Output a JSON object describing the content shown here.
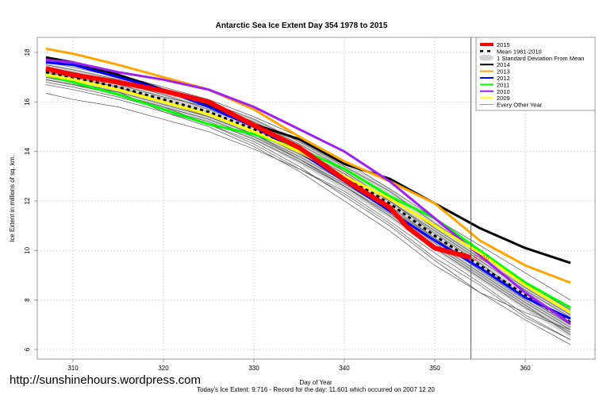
{
  "chart_data": {
    "type": "line",
    "title": "Antarctic Sea Ice Extent Day 354 1978 to 2015",
    "xlabel": "Day of Year",
    "ylabel": "Ice Extent in millions of sq. km.",
    "xlim": [
      306,
      366
    ],
    "ylim": [
      5.5,
      18.6
    ],
    "xticks": [
      310,
      320,
      330,
      340,
      350,
      360
    ],
    "yticks": [
      6,
      8,
      10,
      12,
      14,
      16,
      18
    ],
    "grid": true,
    "legend_position": "top-right",
    "current_day": 354,
    "current_value_label": "9.716",
    "x": [
      307,
      310,
      315,
      320,
      325,
      330,
      335,
      340,
      345,
      350,
      355,
      360,
      365
    ],
    "sd_band": {
      "name": "1 Standard Deviation From Mean",
      "color": "#d3d3d3",
      "upper": [
        17.55,
        17.35,
        16.95,
        16.5,
        16.0,
        15.35,
        14.5,
        13.55,
        12.5,
        11.2,
        10.0,
        8.8,
        7.7
      ],
      "lower": [
        16.85,
        16.65,
        16.25,
        15.7,
        15.2,
        14.45,
        13.5,
        12.45,
        11.3,
        10.0,
        8.8,
        7.6,
        6.5
      ]
    },
    "mean": {
      "name": "Mean 1981-2010",
      "color": "#000000",
      "values": [
        17.2,
        17.0,
        16.6,
        16.1,
        15.6,
        14.9,
        14.0,
        13.0,
        11.9,
        10.6,
        9.4,
        8.2,
        7.1
      ]
    },
    "other_years": {
      "name": "Every Other Year",
      "color": "#555555",
      "series": [
        [
          17.5,
          17.3,
          16.9,
          16.4,
          15.9,
          15.2,
          14.3,
          13.3,
          12.2,
          10.9,
          9.7,
          8.5,
          7.4
        ],
        [
          16.9,
          16.7,
          16.3,
          15.8,
          15.3,
          14.6,
          13.7,
          12.7,
          11.6,
          10.3,
          9.1,
          7.9,
          6.8
        ],
        [
          16.35,
          16.1,
          15.8,
          15.3,
          14.8,
          14.1,
          13.3,
          12.3,
          11.1,
          9.7,
          8.6,
          7.3,
          6.4
        ],
        [
          17.7,
          17.5,
          17.1,
          16.6,
          16.1,
          15.4,
          14.6,
          13.6,
          12.5,
          11.3,
          10.2,
          9.1,
          8.0
        ],
        [
          17.0,
          16.8,
          16.4,
          15.6,
          15.1,
          14.4,
          13.4,
          12.2,
          11.0,
          9.6,
          8.3,
          7.2,
          6.2
        ],
        [
          17.3,
          17.1,
          16.7,
          16.2,
          15.8,
          15.1,
          14.2,
          13.2,
          12.0,
          10.8,
          9.6,
          8.4,
          7.3
        ],
        [
          16.7,
          16.5,
          16.1,
          15.6,
          15.0,
          14.2,
          13.2,
          12.0,
          10.8,
          9.4,
          8.3,
          7.5,
          6.8
        ],
        [
          17.4,
          17.2,
          16.8,
          16.3,
          15.7,
          15.0,
          14.1,
          13.1,
          12.0,
          10.7,
          9.5,
          8.1,
          7.0
        ],
        [
          16.8,
          16.6,
          16.2,
          15.7,
          15.2,
          14.5,
          13.6,
          12.6,
          11.5,
          10.2,
          9.0,
          7.8,
          6.6
        ],
        [
          17.1,
          16.9,
          16.5,
          16.0,
          15.5,
          14.8,
          13.9,
          12.9,
          11.8,
          10.5,
          9.3,
          8.1,
          7.0
        ],
        [
          17.6,
          17.4,
          17.0,
          16.5,
          16.0,
          15.3,
          14.4,
          13.4,
          12.4,
          11.1,
          9.9,
          8.7,
          7.6
        ],
        [
          17.0,
          16.8,
          16.3,
          15.8,
          15.1,
          14.3,
          13.3,
          12.4,
          11.2,
          9.9,
          8.7,
          7.4,
          6.4
        ],
        [
          16.9,
          16.7,
          16.4,
          15.9,
          15.4,
          14.7,
          13.8,
          12.8,
          11.7,
          10.5,
          9.2,
          8.0,
          6.9
        ],
        [
          17.2,
          17.0,
          16.6,
          16.0,
          15.4,
          14.7,
          13.7,
          12.6,
          11.4,
          10.1,
          8.9,
          7.7,
          6.7
        ]
      ]
    },
    "series": [
      {
        "name": "2014",
        "color": "#000000",
        "width": 3,
        "values": [
          17.8,
          17.6,
          17.1,
          16.5,
          15.9,
          15.1,
          14.5,
          13.5,
          12.9,
          11.9,
          10.9,
          10.1,
          9.5
        ]
      },
      {
        "name": "2013",
        "color": "#ffa500",
        "width": 3,
        "values": [
          18.15,
          17.95,
          17.5,
          17.0,
          16.5,
          15.7,
          14.6,
          13.6,
          12.8,
          11.9,
          10.4,
          9.4,
          8.7
        ]
      },
      {
        "name": "2012",
        "color": "#0000ff",
        "width": 3,
        "values": [
          17.6,
          17.5,
          17.0,
          16.5,
          15.8,
          15.0,
          14.0,
          12.8,
          11.6,
          10.4,
          9.3,
          8.1,
          7.25
        ]
      },
      {
        "name": "2011",
        "color": "#00ff00",
        "width": 3,
        "values": [
          17.1,
          16.8,
          16.3,
          15.7,
          15.1,
          14.7,
          14.1,
          13.3,
          12.2,
          11.3,
          10.0,
          8.7,
          7.7
        ]
      },
      {
        "name": "2010",
        "color": "#a020f0",
        "width": 3,
        "values": [
          17.7,
          17.6,
          17.2,
          16.9,
          16.5,
          15.8,
          14.9,
          14.0,
          12.8,
          11.3,
          9.8,
          8.3,
          7.05
        ]
      },
      {
        "name": "2009",
        "color": "#ffff00",
        "width": 3,
        "values": [
          17.1,
          16.9,
          16.5,
          16.0,
          15.5,
          14.8,
          14.0,
          13.0,
          12.1,
          11.0,
          9.9,
          8.6,
          7.5
        ]
      },
      {
        "name": "2015",
        "color": "#ff0000",
        "width": 6,
        "x": [
          307,
          310,
          315,
          320,
          325,
          330,
          335,
          340,
          345,
          347,
          350,
          354
        ],
        "values": [
          17.35,
          17.1,
          16.8,
          16.45,
          16.0,
          15.06,
          14.16,
          12.87,
          11.74,
          10.94,
          10.1,
          9.716
        ]
      }
    ],
    "legend": [
      "2015",
      "Mean 1981-2010",
      "1 Standard Deviation From Mean",
      "2014",
      "2013",
      "2012",
      "2011",
      "2010",
      "2009",
      "Every Other Year"
    ]
  },
  "footer": {
    "site": "http://sunshinehours.wordpress.com",
    "summary": "Today's Ice Extent: 9.716  - Record for the day: 11.601 which occurred on 2007 12 20"
  }
}
